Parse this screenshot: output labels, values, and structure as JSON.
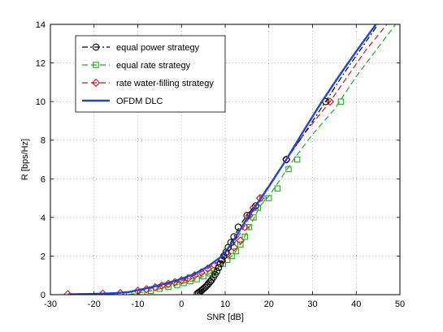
{
  "chart_data": {
    "type": "line",
    "xlabel": "SNR [dB]",
    "ylabel": "R [bps/Hz]",
    "xlim": [
      -30,
      50
    ],
    "ylim": [
      0,
      14
    ],
    "xticks": [
      -30,
      -20,
      -10,
      0,
      10,
      20,
      30,
      40,
      50
    ],
    "yticks": [
      0,
      2,
      4,
      6,
      8,
      10,
      12,
      14
    ],
    "grid": true,
    "grid_style": "dotted",
    "legend_position": "top-left",
    "series": [
      {
        "name": "equal power strategy",
        "color": "#000000",
        "dash": "dash-dot",
        "marker": "circle",
        "points": [
          [
            3.6,
            0.05
          ],
          [
            3.9,
            0.1
          ],
          [
            4.2,
            0.15
          ],
          [
            4.5,
            0.2
          ],
          [
            4.8,
            0.26
          ],
          [
            5.1,
            0.32
          ],
          [
            5.4,
            0.38
          ],
          [
            5.7,
            0.45
          ],
          [
            6.0,
            0.52
          ],
          [
            6.3,
            0.6
          ],
          [
            6.6,
            0.68
          ],
          [
            6.9,
            0.76
          ],
          [
            7.3,
            0.9
          ],
          [
            7.7,
            1.05
          ],
          [
            8.1,
            1.2
          ],
          [
            8.5,
            1.4
          ],
          [
            8.9,
            1.6
          ],
          [
            9.3,
            1.8
          ],
          [
            9.7,
            2.0
          ],
          [
            10.2,
            2.2
          ],
          [
            10.7,
            2.45
          ],
          [
            11.3,
            2.7
          ],
          [
            12.0,
            3.0
          ],
          [
            13.0,
            3.5
          ],
          [
            15.0,
            4.1
          ],
          [
            17.0,
            4.6
          ],
          [
            24.0,
            7.0
          ],
          [
            33.0,
            10.0
          ]
        ],
        "line": [
          [
            3.6,
            0.05
          ],
          [
            4.5,
            0.2
          ],
          [
            5.5,
            0.4
          ],
          [
            6.5,
            0.65
          ],
          [
            7.5,
            1.0
          ],
          [
            8.5,
            1.4
          ],
          [
            9.5,
            1.9
          ],
          [
            10.5,
            2.35
          ],
          [
            11.5,
            2.8
          ],
          [
            12.5,
            3.2
          ],
          [
            14.0,
            3.8
          ],
          [
            16.0,
            4.4
          ],
          [
            18.0,
            4.95
          ],
          [
            21.0,
            5.95
          ],
          [
            24.0,
            7.0
          ],
          [
            28.0,
            8.3
          ],
          [
            33.0,
            10.0
          ],
          [
            37.0,
            11.4
          ],
          [
            41.0,
            12.7
          ],
          [
            45.0,
            14.0
          ]
        ]
      },
      {
        "name": "equal rate strategy",
        "color": "#22aa22",
        "dash": "dash",
        "marker": "square",
        "points": [
          [
            -12.0,
            0.0
          ],
          [
            -9.0,
            0.1
          ],
          [
            -7.0,
            0.2
          ],
          [
            -5.0,
            0.3
          ],
          [
            -3.0,
            0.4
          ],
          [
            -1.0,
            0.5
          ],
          [
            0.5,
            0.6
          ],
          [
            2.0,
            0.7
          ],
          [
            3.5,
            0.8
          ],
          [
            5.0,
            0.95
          ],
          [
            6.5,
            1.1
          ],
          [
            7.5,
            1.25
          ],
          [
            8.5,
            1.4
          ],
          [
            9.5,
            1.6
          ],
          [
            10.5,
            1.8
          ],
          [
            11.5,
            2.0
          ],
          [
            12.5,
            2.25
          ],
          [
            13.5,
            2.6
          ],
          [
            14.5,
            3.0
          ],
          [
            15.5,
            3.5
          ],
          [
            16.5,
            4.0
          ],
          [
            17.5,
            4.5
          ],
          [
            18.5,
            5.0
          ],
          [
            20.0,
            5.0
          ],
          [
            22.0,
            5.5
          ],
          [
            24.5,
            6.5
          ],
          [
            26.5,
            7.0
          ],
          [
            36.5,
            10.0
          ]
        ],
        "line": [
          [
            -12.0,
            0.0
          ],
          [
            -7.0,
            0.2
          ],
          [
            -2.0,
            0.45
          ],
          [
            3.0,
            0.75
          ],
          [
            7.0,
            1.15
          ],
          [
            10.0,
            1.7
          ],
          [
            12.0,
            2.1
          ],
          [
            14.0,
            2.8
          ],
          [
            16.0,
            3.7
          ],
          [
            18.0,
            4.6
          ],
          [
            20.0,
            5.1
          ],
          [
            23.0,
            6.1
          ],
          [
            26.0,
            7.1
          ],
          [
            30.0,
            8.3
          ],
          [
            35.0,
            9.6
          ],
          [
            40.0,
            11.3
          ],
          [
            45.0,
            12.8
          ],
          [
            49.0,
            14.0
          ]
        ]
      },
      {
        "name": "rate water-filling strategy",
        "color": "#dd1111",
        "dash": "dash",
        "marker": "diamond",
        "points": [
          [
            -26.0,
            0.02
          ],
          [
            -18.0,
            0.05
          ],
          [
            -14.0,
            0.08
          ],
          [
            -10.0,
            0.2
          ],
          [
            -8.0,
            0.28
          ],
          [
            -6.0,
            0.38
          ],
          [
            -4.5,
            0.47
          ],
          [
            -3.0,
            0.56
          ],
          [
            -1.5,
            0.65
          ],
          [
            0.0,
            0.75
          ],
          [
            1.5,
            0.85
          ],
          [
            3.0,
            1.0
          ],
          [
            4.5,
            1.15
          ],
          [
            6.0,
            1.35
          ],
          [
            7.5,
            1.55
          ],
          [
            9.0,
            1.8
          ],
          [
            10.5,
            2.1
          ],
          [
            12.0,
            2.45
          ],
          [
            13.5,
            2.8
          ],
          [
            14.5,
            3.5
          ],
          [
            15.5,
            4.1
          ],
          [
            16.5,
            4.5
          ],
          [
            18.0,
            5.0
          ],
          [
            24.0,
            7.0
          ],
          [
            34.0,
            10.0
          ]
        ],
        "line": [
          [
            -26.0,
            0.02
          ],
          [
            -20.0,
            0.04
          ],
          [
            -15.0,
            0.07
          ],
          [
            -12.0,
            0.12
          ],
          [
            -9.0,
            0.24
          ],
          [
            -6.0,
            0.38
          ],
          [
            -3.0,
            0.56
          ],
          [
            0.0,
            0.75
          ],
          [
            3.0,
            1.0
          ],
          [
            6.0,
            1.35
          ],
          [
            9.0,
            1.8
          ],
          [
            11.5,
            2.4
          ],
          [
            13.5,
            3.2
          ],
          [
            15.5,
            4.0
          ],
          [
            18.0,
            5.0
          ],
          [
            21.0,
            6.0
          ],
          [
            24.0,
            7.0
          ],
          [
            28.0,
            8.3
          ],
          [
            34.0,
            10.0
          ],
          [
            38.0,
            11.3
          ],
          [
            42.0,
            12.6
          ],
          [
            47.0,
            14.0
          ]
        ]
      },
      {
        "name": "OFDM DLC",
        "color": "#2244dd",
        "dash": "solid",
        "marker": "none",
        "line": [
          [
            -26.0,
            0.02
          ],
          [
            -20.0,
            0.04
          ],
          [
            -15.0,
            0.08
          ],
          [
            -12.0,
            0.14
          ],
          [
            -9.0,
            0.28
          ],
          [
            -6.0,
            0.44
          ],
          [
            -3.0,
            0.62
          ],
          [
            0.0,
            0.82
          ],
          [
            3.0,
            1.08
          ],
          [
            6.0,
            1.45
          ],
          [
            9.0,
            1.95
          ],
          [
            11.0,
            2.5
          ],
          [
            13.0,
            3.2
          ],
          [
            15.0,
            3.95
          ],
          [
            17.0,
            4.6
          ],
          [
            20.0,
            5.6
          ],
          [
            24.0,
            7.0
          ],
          [
            28.0,
            8.5
          ],
          [
            32.0,
            9.95
          ],
          [
            36.0,
            11.3
          ],
          [
            40.0,
            12.6
          ],
          [
            44.5,
            14.0
          ]
        ]
      }
    ]
  }
}
